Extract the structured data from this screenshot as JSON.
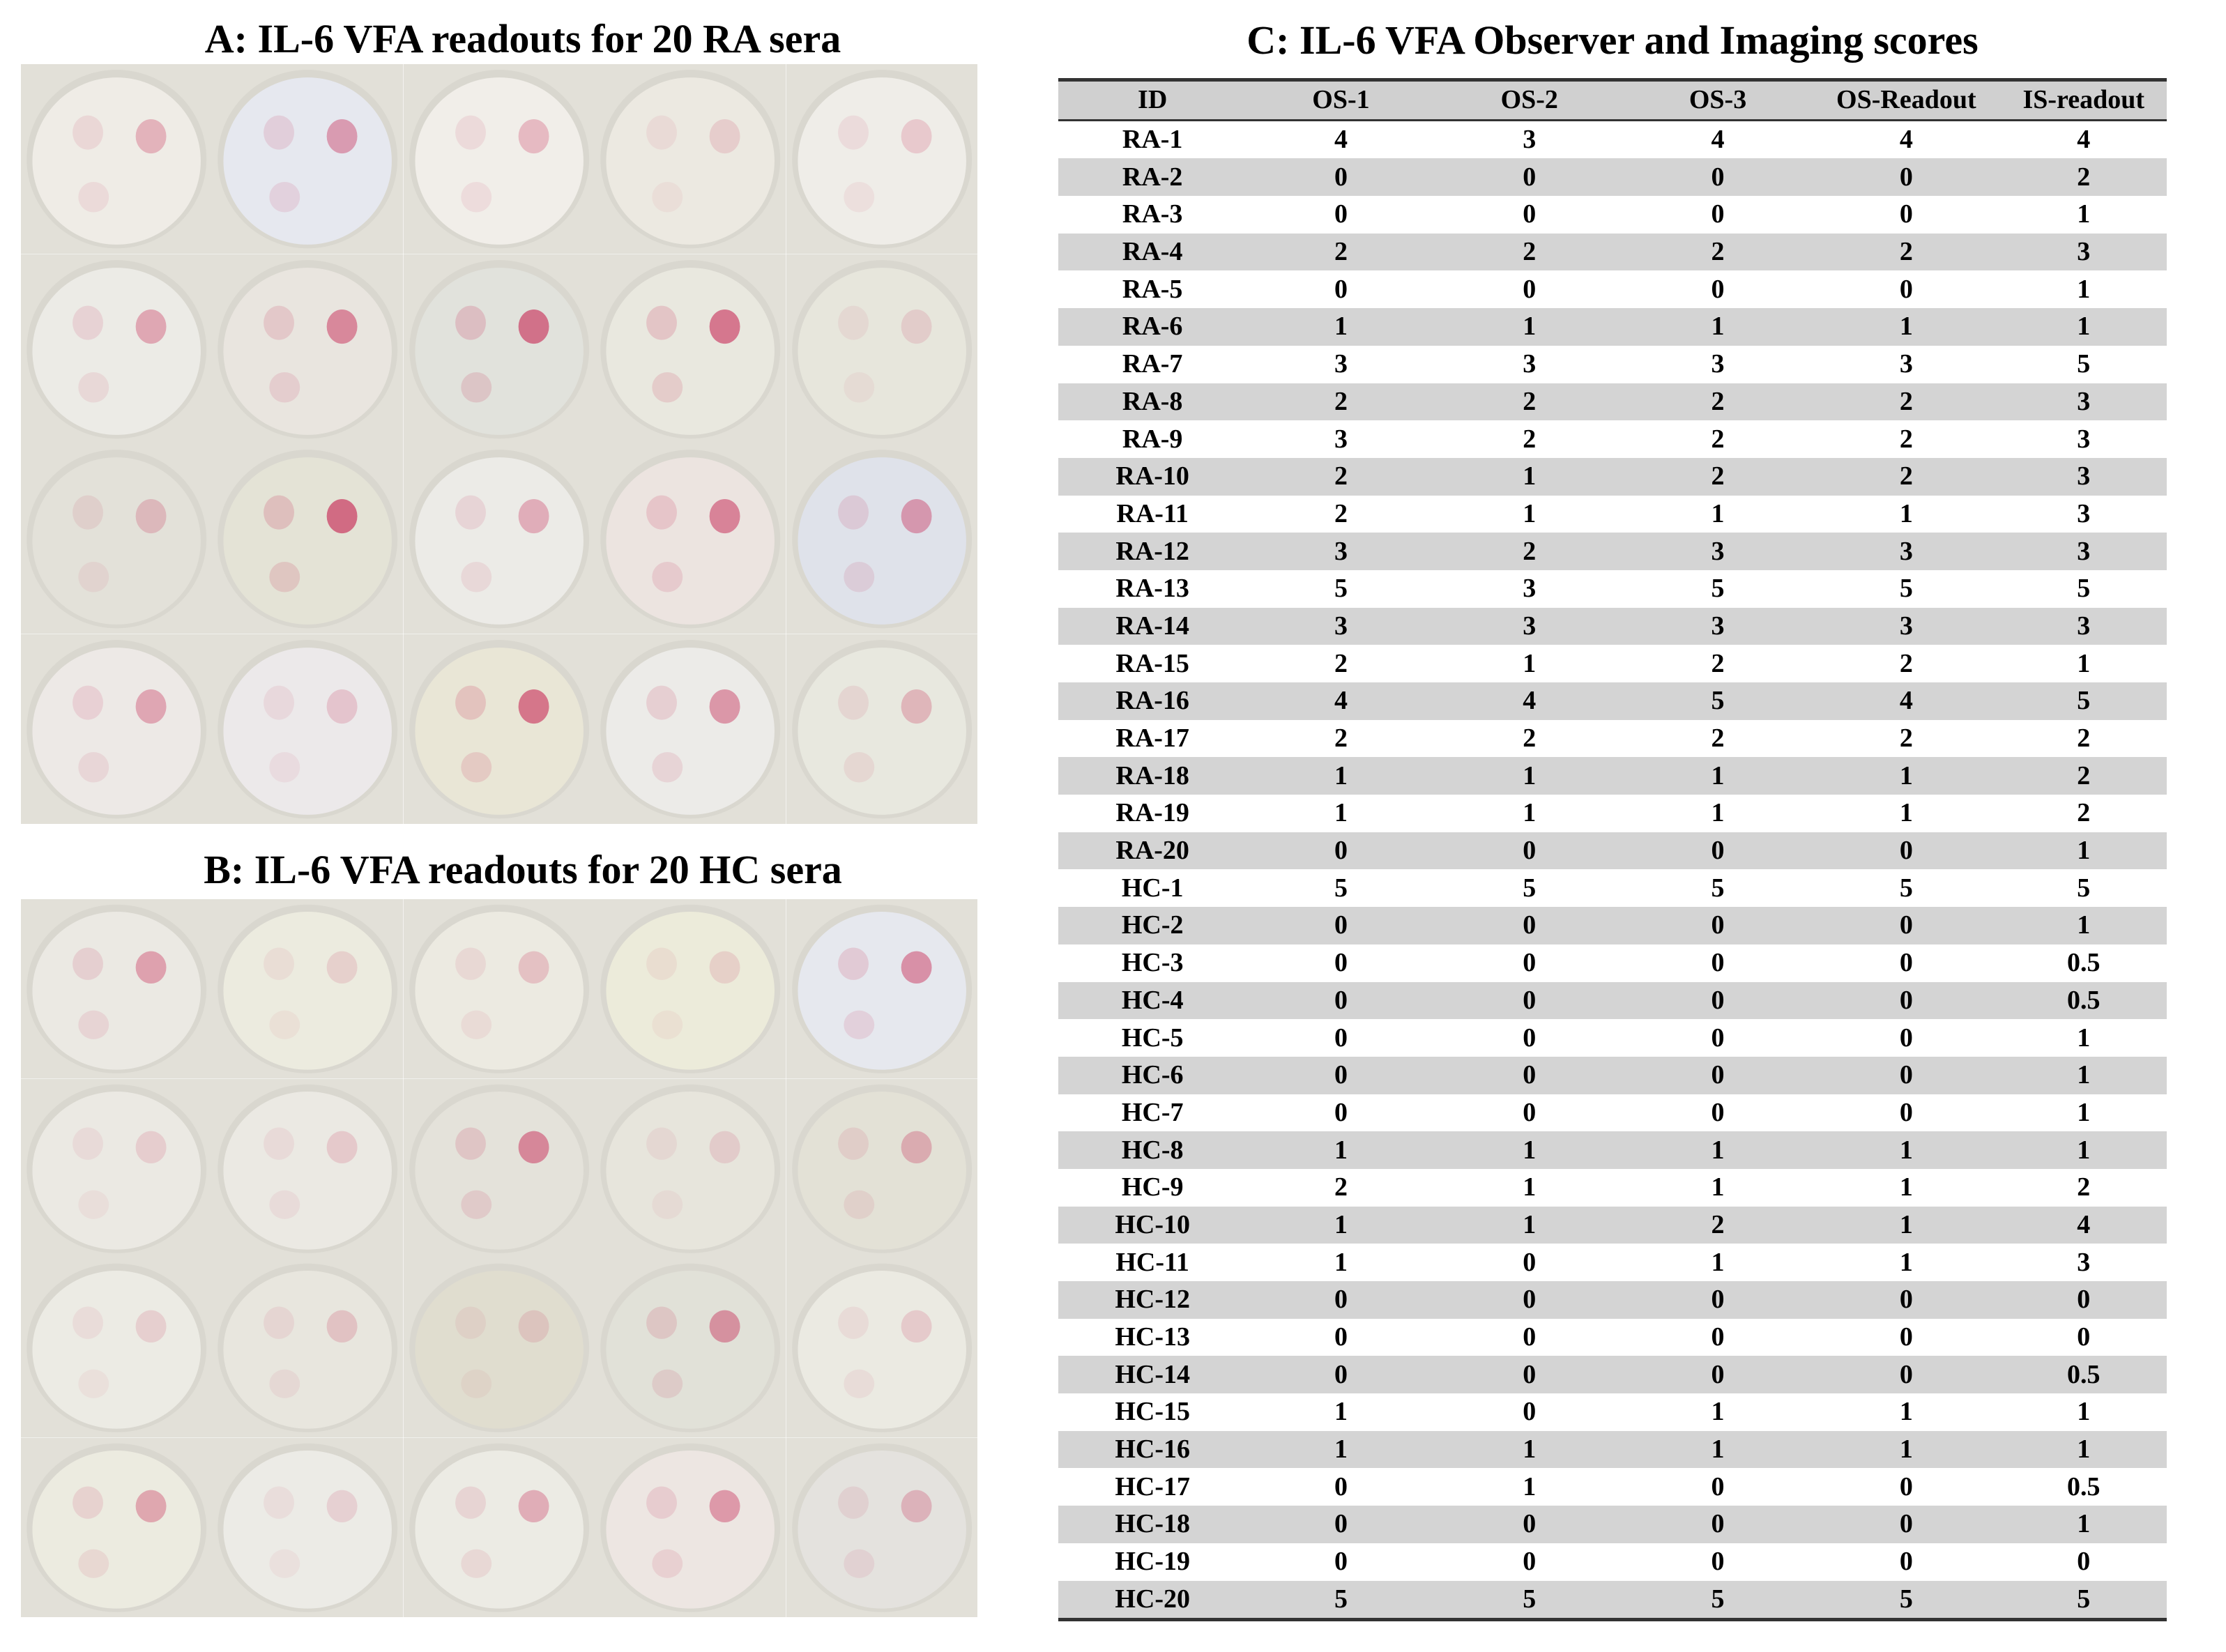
{
  "panels": {
    "a_title": "A: IL-6 VFA readouts for 20 RA sera",
    "b_title": "B: IL-6 VFA readouts for 20 HC sera",
    "c_title": "C: IL-6 VFA Observer and Imaging scores"
  },
  "table": {
    "headers": [
      "ID",
      "OS-1",
      "OS-2",
      "OS-3",
      "OS-Readout",
      "IS-readout"
    ],
    "rows": [
      [
        "RA-1",
        "4",
        "3",
        "4",
        "4",
        "4"
      ],
      [
        "RA-2",
        "0",
        "0",
        "0",
        "0",
        "2"
      ],
      [
        "RA-3",
        "0",
        "0",
        "0",
        "0",
        "1"
      ],
      [
        "RA-4",
        "2",
        "2",
        "2",
        "2",
        "3"
      ],
      [
        "RA-5",
        "0",
        "0",
        "0",
        "0",
        "1"
      ],
      [
        "RA-6",
        "1",
        "1",
        "1",
        "1",
        "1"
      ],
      [
        "RA-7",
        "3",
        "3",
        "3",
        "3",
        "5"
      ],
      [
        "RA-8",
        "2",
        "2",
        "2",
        "2",
        "3"
      ],
      [
        "RA-9",
        "3",
        "2",
        "2",
        "2",
        "3"
      ],
      [
        "RA-10",
        "2",
        "1",
        "2",
        "2",
        "3"
      ],
      [
        "RA-11",
        "2",
        "1",
        "1",
        "1",
        "3"
      ],
      [
        "RA-12",
        "3",
        "2",
        "3",
        "3",
        "3"
      ],
      [
        "RA-13",
        "5",
        "3",
        "5",
        "5",
        "5"
      ],
      [
        "RA-14",
        "3",
        "3",
        "3",
        "3",
        "3"
      ],
      [
        "RA-15",
        "2",
        "1",
        "2",
        "2",
        "1"
      ],
      [
        "RA-16",
        "4",
        "4",
        "5",
        "4",
        "5"
      ],
      [
        "RA-17",
        "2",
        "2",
        "2",
        "2",
        "2"
      ],
      [
        "RA-18",
        "1",
        "1",
        "1",
        "1",
        "2"
      ],
      [
        "RA-19",
        "1",
        "1",
        "1",
        "1",
        "2"
      ],
      [
        "RA-20",
        "0",
        "0",
        "0",
        "0",
        "1"
      ],
      [
        "HC-1",
        "5",
        "5",
        "5",
        "5",
        "5"
      ],
      [
        "HC-2",
        "0",
        "0",
        "0",
        "0",
        "1"
      ],
      [
        "HC-3",
        "0",
        "0",
        "0",
        "0",
        "0.5"
      ],
      [
        "HC-4",
        "0",
        "0",
        "0",
        "0",
        "0.5"
      ],
      [
        "HC-5",
        "0",
        "0",
        "0",
        "0",
        "1"
      ],
      [
        "HC-6",
        "0",
        "0",
        "0",
        "0",
        "1"
      ],
      [
        "HC-7",
        "0",
        "0",
        "0",
        "0",
        "1"
      ],
      [
        "HC-8",
        "1",
        "1",
        "1",
        "1",
        "1"
      ],
      [
        "HC-9",
        "2",
        "1",
        "1",
        "1",
        "2"
      ],
      [
        "HC-10",
        "1",
        "1",
        "2",
        "1",
        "4"
      ],
      [
        "HC-11",
        "1",
        "0",
        "1",
        "1",
        "3"
      ],
      [
        "HC-12",
        "0",
        "0",
        "0",
        "0",
        "0"
      ],
      [
        "HC-13",
        "0",
        "0",
        "0",
        "0",
        "0"
      ],
      [
        "HC-14",
        "0",
        "0",
        "0",
        "0",
        "0.5"
      ],
      [
        "HC-15",
        "1",
        "0",
        "1",
        "1",
        "1"
      ],
      [
        "HC-16",
        "1",
        "1",
        "1",
        "1",
        "1"
      ],
      [
        "HC-17",
        "0",
        "1",
        "0",
        "0",
        "0.5"
      ],
      [
        "HC-18",
        "0",
        "0",
        "0",
        "0",
        "1"
      ],
      [
        "HC-19",
        "0",
        "0",
        "0",
        "0",
        "0"
      ],
      [
        "HC-20",
        "5",
        "5",
        "5",
        "5",
        "5"
      ]
    ]
  },
  "colors": {
    "spot": "#c8305a",
    "membrane": "#f1efe8",
    "tile_bg": "#e2e0d8",
    "row_stripe": "#d4d4d4",
    "header_bg": "#d0d0d0"
  },
  "photos": {
    "ra": [
      {
        "intensity": 0.35,
        "tint": "#efece6"
      },
      {
        "intensity": 0.55,
        "tint": "#e6e8ef"
      },
      {
        "intensity": 0.3,
        "tint": "#f1eee9"
      },
      {
        "intensity": 0.12,
        "tint": "#ece9e1"
      },
      {
        "intensity": 0.18,
        "tint": "#efede8"
      },
      {
        "intensity": 0.45,
        "tint": "#ecebe6"
      },
      {
        "intensity": 0.7,
        "tint": "#e9e5df"
      },
      {
        "intensity": 0.9,
        "tint": "#e1e2dc"
      },
      {
        "intensity": 0.85,
        "tint": "#e9e8df"
      },
      {
        "intensity": 0.1,
        "tint": "#e7e6dc"
      },
      {
        "intensity": 0.25,
        "tint": "#e3e1d9"
      },
      {
        "intensity": 0.95,
        "tint": "#e4e3d6"
      },
      {
        "intensity": 0.4,
        "tint": "#ecebe7"
      },
      {
        "intensity": 0.75,
        "tint": "#ece4e0"
      },
      {
        "intensity": 0.55,
        "tint": "#dfe2ea"
      },
      {
        "intensity": 0.45,
        "tint": "#ede9e6"
      },
      {
        "intensity": 0.2,
        "tint": "#ece9ea"
      },
      {
        "intensity": 0.85,
        "tint": "#e9e6d6"
      },
      {
        "intensity": 0.6,
        "tint": "#ecebe8"
      },
      {
        "intensity": 0.3,
        "tint": "#e8e8df"
      }
    ],
    "hc": [
      {
        "intensity": 0.5,
        "tint": "#ebe9e3"
      },
      {
        "intensity": 0.1,
        "tint": "#ecebdf"
      },
      {
        "intensity": 0.22,
        "tint": "#eceae1"
      },
      {
        "intensity": 0.1,
        "tint": "#ecebda"
      },
      {
        "intensity": 0.65,
        "tint": "#e6e8ee"
      },
      {
        "intensity": 0.12,
        "tint": "#ebe9e3"
      },
      {
        "intensity": 0.15,
        "tint": "#ebe9e3"
      },
      {
        "intensity": 0.7,
        "tint": "#e4e2da"
      },
      {
        "intensity": 0.1,
        "tint": "#e7e5dc"
      },
      {
        "intensity": 0.35,
        "tint": "#e3e1d6"
      },
      {
        "intensity": 0.12,
        "tint": "#ecebe4"
      },
      {
        "intensity": 0.2,
        "tint": "#e8e6de"
      },
      {
        "intensity": 0.1,
        "tint": "#e0ddcf"
      },
      {
        "intensity": 0.6,
        "tint": "#e1e1d8"
      },
      {
        "intensity": 0.15,
        "tint": "#ebeae2"
      },
      {
        "intensity": 0.45,
        "tint": "#ecebe0"
      },
      {
        "intensity": 0.1,
        "tint": "#ecebe6"
      },
      {
        "intensity": 0.4,
        "tint": "#ecebe4"
      },
      {
        "intensity": 0.55,
        "tint": "#ede6e2"
      },
      {
        "intensity": 0.3,
        "tint": "#e4e2de"
      }
    ]
  }
}
